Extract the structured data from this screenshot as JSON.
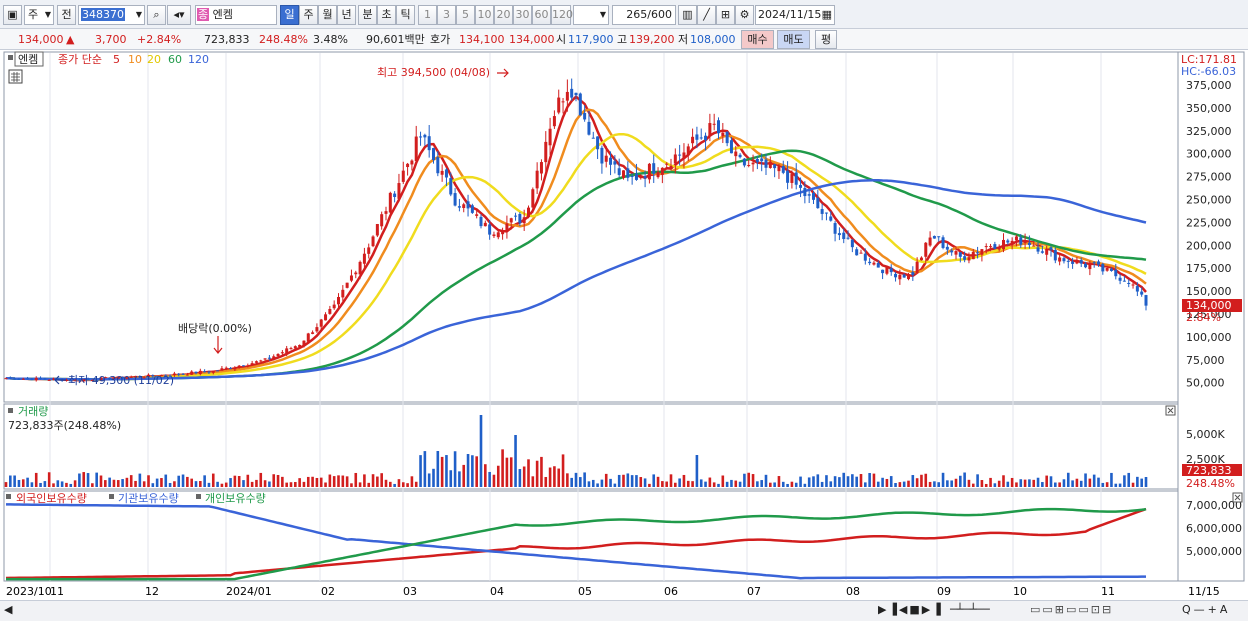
{
  "toolbar": {
    "market": "주",
    "jeon": "전",
    "code": "348370",
    "stock_name": "엔켐",
    "jong_badge": "종",
    "periods": [
      "일",
      "주",
      "월",
      "년",
      "분",
      "초",
      "틱"
    ],
    "minutes": [
      "1",
      "3",
      "5",
      "10",
      "20",
      "30",
      "60",
      "120"
    ],
    "count": "265",
    "count_total": "/600",
    "date": "2024/11/15"
  },
  "quote": {
    "price": "134,000",
    "arrow": "▲",
    "change": "3,700",
    "change_pct": "+2.84%",
    "volume": "723,833",
    "vol_ratio": "248.48%",
    "turnover": "3.48%",
    "amount": "90,601백만",
    "ho_label": "호가",
    "ask": "134,100",
    "bid": "134,000",
    "open_label": "시",
    "open": "117,900",
    "high_label": "고",
    "high": "139,200",
    "low_label": "저",
    "low": "108,000",
    "buy_btn": "매수",
    "sell_btn": "매도",
    "eval_btn": "평"
  },
  "price_panel": {
    "name_tag": "엔켐",
    "legend_prefix": "종가 단순",
    "ma_labels": [
      {
        "label": "5",
        "color": "#d21e1e"
      },
      {
        "label": "10",
        "color": "#f08c1e"
      },
      {
        "label": "20",
        "color": "#f0dc1e"
      },
      {
        "label": "60",
        "color": "#209a4a"
      },
      {
        "label": "120",
        "color": "#3a64d8"
      }
    ],
    "lc": "LC:171.81",
    "hc": "HC:-66.03",
    "high_annot": "최고 394,500 (04/08)",
    "low_annot": "최저 49,300 (11/02)",
    "div_annot": "배당락(0.00%)",
    "y_ticks": [
      "375,000",
      "350,000",
      "325,000",
      "300,000",
      "275,000",
      "250,000",
      "225,000",
      "200,000",
      "175,000",
      "150,000",
      "125,000",
      "100,000",
      "75,000",
      "50,000"
    ],
    "last_price": "134,000",
    "last_pct": "2.84%"
  },
  "volume_panel": {
    "title": "거래량",
    "value": "723,833주(248.48%)",
    "y_ticks": [
      "5,000K",
      "2,500K"
    ],
    "last_value": "723,833",
    "last_pct": "248.48%"
  },
  "holdings_panel": {
    "legend": [
      {
        "label": "외국인보유수량",
        "color": "#d21e1e"
      },
      {
        "label": "기관보유수량",
        "color": "#3a64d8"
      },
      {
        "label": "개인보유수량",
        "color": "#209a4a"
      }
    ],
    "y_ticks": [
      "7,000,000",
      "6,000,000",
      "5,000,000"
    ]
  },
  "x_axis": {
    "labels": [
      "2023/10",
      "11",
      "12",
      "2024/01",
      "02",
      "03",
      "04",
      "05",
      "06",
      "07",
      "08",
      "09",
      "10",
      "11",
      "11/15"
    ]
  },
  "colors": {
    "up": "#d21e1e",
    "down": "#1f5fc8",
    "accent": "#3b6fd1"
  }
}
